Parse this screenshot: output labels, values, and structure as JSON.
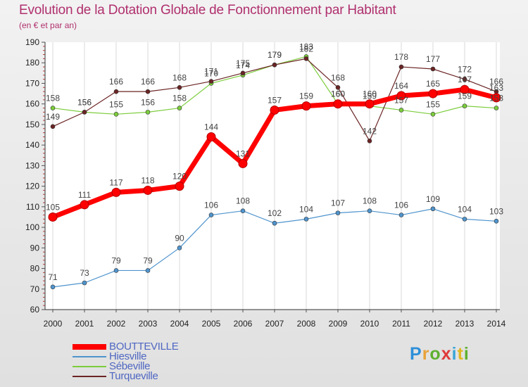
{
  "chart_data": {
    "type": "line",
    "title": "Evolution de la Dotation Globale de Fonctionnement par Habitant",
    "subtitle": "(en € et par an)",
    "x": [
      "2000",
      "2001",
      "2002",
      "2003",
      "2004",
      "2005",
      "2006",
      "2007",
      "2008",
      "2009",
      "2010",
      "2011",
      "2012",
      "2013",
      "2014"
    ],
    "ylim": [
      60,
      190
    ],
    "yticks": [
      60,
      70,
      80,
      90,
      100,
      110,
      120,
      130,
      140,
      150,
      160,
      170,
      180,
      190
    ],
    "grid": "vertical",
    "legend_position": "bottom-left",
    "series": [
      {
        "name": "BOUTTEVILLE",
        "color": "#ff0000",
        "values": [
          105,
          111,
          117,
          118,
          120,
          144,
          131,
          157,
          159,
          160,
          160,
          164,
          165,
          167,
          163
        ]
      },
      {
        "name": "Hiesville",
        "color": "#4f94cd",
        "values": [
          71,
          73,
          79,
          79,
          90,
          106,
          108,
          102,
          104,
          107,
          108,
          106,
          109,
          104,
          103
        ]
      },
      {
        "name": "Sébeville",
        "color": "#7ccd3c",
        "values": [
          158,
          156,
          155,
          156,
          158,
          170,
          174,
          179,
          183,
          160,
          159,
          157,
          155,
          159,
          158
        ]
      },
      {
        "name": "Turqueville",
        "color": "#6b2424",
        "values": [
          149,
          156,
          166,
          166,
          168,
          171,
          175,
          179,
          182,
          168,
          142,
          178,
          177,
          172,
          166
        ]
      }
    ]
  },
  "logo": {
    "chars": [
      "P",
      "r",
      "o",
      "x",
      "i",
      "t",
      "i"
    ],
    "colors": [
      "#2e8fd8",
      "#e8a23a",
      "#5fb030",
      "#e03a3a",
      "#3aa5d8",
      "#e0b820",
      "#5fb030"
    ]
  }
}
